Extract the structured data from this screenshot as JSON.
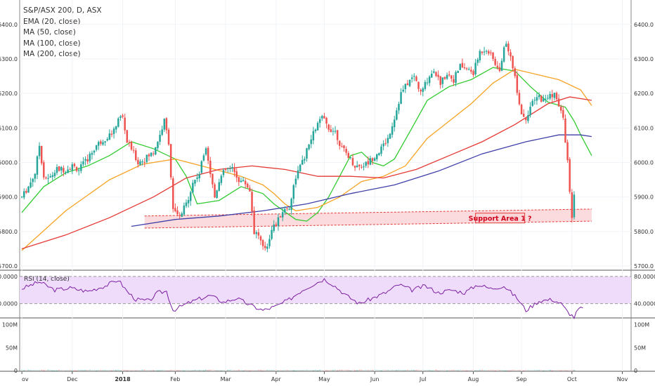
{
  "legend": {
    "symbol": "S&P/ASX 200, D, ASX",
    "ema20": "EMA (20, close)",
    "ma50": "MA (50, close)",
    "ma100": "MA (100, close)",
    "ma200": "MA (200, close)"
  },
  "annotation": {
    "support": "Support Area 1 ?"
  },
  "rsi_label": "RSI (14, close)",
  "colors": {
    "up": "#26a69a",
    "down": "#ef5350",
    "ema20": "#33cc33",
    "ma50": "#f7a325",
    "ma100": "#e53935",
    "ma200": "#3f3fa8",
    "rsi_line": "#7b1fa2",
    "rsi_band": "#efdcfa",
    "support_fill": "#fbd5d8",
    "support_border": "#e53935"
  },
  "chart_data": [
    {
      "type": "candlestick",
      "y_ticks": [
        "6400.0",
        "6300.0",
        "6200.0",
        "6100.0",
        "6000.0",
        "5900.0",
        "5800.0",
        "5700.0"
      ],
      "y_tick_values": [
        6400,
        6300,
        6200,
        6100,
        6000,
        5900,
        5800,
        5700
      ],
      "ylim": [
        5690,
        6430
      ],
      "x_ticks": [
        "ov",
        "Dec",
        "2018",
        "Feb",
        "Mar",
        "Apr",
        "May",
        "Jun",
        "Jul",
        "Aug",
        "Sep",
        "Oct",
        "Nov"
      ],
      "x_tick_days": [
        0,
        23,
        46,
        70,
        93,
        116,
        138,
        161,
        183,
        206,
        228,
        251,
        274
      ],
      "x_range_days": [
        -1,
        278
      ],
      "last_day": 252,
      "series": [
        {
          "name": "EMA (20, close)",
          "points": [
            [
              0,
              5855
            ],
            [
              10,
              5930
            ],
            [
              20,
              5970
            ],
            [
              30,
              5990
            ],
            [
              40,
              6020
            ],
            [
              50,
              6060
            ],
            [
              60,
              6040
            ],
            [
              70,
              6010
            ],
            [
              75,
              5960
            ],
            [
              80,
              5880
            ],
            [
              90,
              5890
            ],
            [
              100,
              5930
            ],
            [
              110,
              5910
            ],
            [
              115,
              5880
            ],
            [
              125,
              5835
            ],
            [
              130,
              5830
            ],
            [
              135,
              5855
            ],
            [
              140,
              5900
            ],
            [
              145,
              5960
            ],
            [
              150,
              6020
            ],
            [
              155,
              6030
            ],
            [
              160,
              6000
            ],
            [
              165,
              5990
            ],
            [
              170,
              6010
            ],
            [
              178,
              6100
            ],
            [
              185,
              6180
            ],
            [
              195,
              6220
            ],
            [
              205,
              6240
            ],
            [
              215,
              6275
            ],
            [
              225,
              6265
            ],
            [
              232,
              6220
            ],
            [
              240,
              6175
            ],
            [
              248,
              6160
            ],
            [
              252,
              6120
            ],
            [
              255,
              6080
            ],
            [
              260,
              6020
            ]
          ]
        },
        {
          "name": "MA (50, close)",
          "points": [
            [
              0,
              5745
            ],
            [
              20,
              5860
            ],
            [
              40,
              5950
            ],
            [
              55,
              5995
            ],
            [
              70,
              6010
            ],
            [
              85,
              5985
            ],
            [
              100,
              5960
            ],
            [
              110,
              5935
            ],
            [
              115,
              5910
            ],
            [
              120,
              5880
            ],
            [
              125,
              5860
            ],
            [
              135,
              5870
            ],
            [
              145,
              5900
            ],
            [
              155,
              5945
            ],
            [
              165,
              5960
            ],
            [
              175,
              5990
            ],
            [
              185,
              6070
            ],
            [
              195,
              6120
            ],
            [
              205,
              6170
            ],
            [
              215,
              6230
            ],
            [
              225,
              6270
            ],
            [
              235,
              6255
            ],
            [
              245,
              6240
            ],
            [
              255,
              6210
            ],
            [
              260,
              6165
            ]
          ]
        },
        {
          "name": "MA (100, close)",
          "points": [
            [
              0,
              5750
            ],
            [
              20,
              5790
            ],
            [
              40,
              5840
            ],
            [
              60,
              5900
            ],
            [
              75,
              5955
            ],
            [
              90,
              5980
            ],
            [
              105,
              5990
            ],
            [
              120,
              5980
            ],
            [
              135,
              5960
            ],
            [
              150,
              5960
            ],
            [
              165,
              5955
            ],
            [
              180,
              5980
            ],
            [
              195,
              6020
            ],
            [
              210,
              6060
            ],
            [
              225,
              6110
            ],
            [
              240,
              6170
            ],
            [
              250,
              6190
            ],
            [
              260,
              6180
            ]
          ]
        },
        {
          "name": "MA (200, close)",
          "points": [
            [
              50,
              5815
            ],
            [
              70,
              5835
            ],
            [
              90,
              5845
            ],
            [
              110,
              5860
            ],
            [
              130,
              5880
            ],
            [
              150,
              5910
            ],
            [
              170,
              5935
            ],
            [
              190,
              5975
            ],
            [
              210,
              6025
            ],
            [
              230,
              6060
            ],
            [
              245,
              6080
            ],
            [
              255,
              6080
            ],
            [
              260,
              6075
            ]
          ]
        }
      ],
      "candle_anchors": [
        [
          0,
          5900
        ],
        [
          3,
          5930
        ],
        [
          6,
          5970
        ],
        [
          8,
          6050
        ],
        [
          10,
          5960
        ],
        [
          12,
          5950
        ],
        [
          16,
          5980
        ],
        [
          20,
          5980
        ],
        [
          23,
          5990
        ],
        [
          26,
          5980
        ],
        [
          30,
          6010
        ],
        [
          34,
          6050
        ],
        [
          38,
          6070
        ],
        [
          42,
          6090
        ],
        [
          44,
          6130
        ],
        [
          46,
          6130
        ],
        [
          48,
          6060
        ],
        [
          50,
          6040
        ],
        [
          53,
          6000
        ],
        [
          56,
          6010
        ],
        [
          60,
          6030
        ],
        [
          63,
          6080
        ],
        [
          65,
          6120
        ],
        [
          67,
          6060
        ],
        [
          69,
          5860
        ],
        [
          72,
          5840
        ],
        [
          75,
          5880
        ],
        [
          78,
          5940
        ],
        [
          81,
          5970
        ],
        [
          84,
          6050
        ],
        [
          86,
          5970
        ],
        [
          88,
          5900
        ],
        [
          90,
          5950
        ],
        [
          93,
          5980
        ],
        [
          96,
          5980
        ],
        [
          99,
          5950
        ],
        [
          102,
          5940
        ],
        [
          104,
          5920
        ],
        [
          106,
          5800
        ],
        [
          108,
          5790
        ],
        [
          110,
          5750
        ],
        [
          112,
          5760
        ],
        [
          114,
          5810
        ],
        [
          116,
          5820
        ],
        [
          119,
          5860
        ],
        [
          122,
          5870
        ],
        [
          125,
          5960
        ],
        [
          128,
          6000
        ],
        [
          131,
          6050
        ],
        [
          134,
          6100
        ],
        [
          137,
          6130
        ],
        [
          140,
          6100
        ],
        [
          143,
          6090
        ],
        [
          146,
          6040
        ],
        [
          149,
          6020
        ],
        [
          152,
          5990
        ],
        [
          155,
          5990
        ],
        [
          158,
          6000
        ],
        [
          161,
          6020
        ],
        [
          164,
          6040
        ],
        [
          167,
          6070
        ],
        [
          170,
          6130
        ],
        [
          173,
          6200
        ],
        [
          176,
          6230
        ],
        [
          179,
          6250
        ],
        [
          182,
          6200
        ],
        [
          185,
          6240
        ],
        [
          188,
          6270
        ],
        [
          191,
          6230
        ],
        [
          194,
          6260
        ],
        [
          197,
          6240
        ],
        [
          200,
          6280
        ],
        [
          203,
          6270
        ],
        [
          206,
          6260
        ],
        [
          209,
          6320
        ],
        [
          212,
          6330
        ],
        [
          215,
          6300
        ],
        [
          218,
          6260
        ],
        [
          220,
          6340
        ],
        [
          222,
          6330
        ],
        [
          224,
          6280
        ],
        [
          226,
          6210
        ],
        [
          228,
          6140
        ],
        [
          230,
          6130
        ],
        [
          232,
          6160
        ],
        [
          234,
          6180
        ],
        [
          236,
          6190
        ],
        [
          238,
          6180
        ],
        [
          240,
          6190
        ],
        [
          243,
          6200
        ],
        [
          245,
          6160
        ],
        [
          247,
          6130
        ],
        [
          249,
          6000
        ],
        [
          251,
          5840
        ],
        [
          252,
          5900
        ],
        [
          253,
          5940
        ],
        [
          254,
          5935
        ],
        [
          255,
          5900
        ],
        [
          256,
          5890
        ]
      ],
      "support_zone": {
        "start_day": 56,
        "end_day": 260,
        "top_start": 5845,
        "top_end": 5865,
        "bottom_start": 5810,
        "bottom_end": 5830
      }
    },
    {
      "type": "line",
      "name": "RSI (14, close)",
      "y_ticks": [
        "80.0000",
        "40.0000"
      ],
      "y_tick_values": [
        80,
        40
      ],
      "ylim": [
        20,
        86
      ],
      "band": [
        40,
        80
      ],
      "points": [
        [
          0,
          62
        ],
        [
          8,
          72
        ],
        [
          15,
          60
        ],
        [
          22,
          63
        ],
        [
          30,
          58
        ],
        [
          38,
          66
        ],
        [
          44,
          75
        ],
        [
          48,
          58
        ],
        [
          52,
          46
        ],
        [
          58,
          44
        ],
        [
          62,
          56
        ],
        [
          66,
          58
        ],
        [
          69,
          30
        ],
        [
          74,
          38
        ],
        [
          80,
          46
        ],
        [
          86,
          52
        ],
        [
          92,
          42
        ],
        [
          98,
          48
        ],
        [
          104,
          38
        ],
        [
          110,
          30
        ],
        [
          116,
          36
        ],
        [
          122,
          46
        ],
        [
          128,
          60
        ],
        [
          134,
          70
        ],
        [
          138,
          76
        ],
        [
          142,
          68
        ],
        [
          148,
          52
        ],
        [
          154,
          40
        ],
        [
          160,
          48
        ],
        [
          166,
          56
        ],
        [
          172,
          68
        ],
        [
          178,
          60
        ],
        [
          184,
          66
        ],
        [
          190,
          56
        ],
        [
          196,
          60
        ],
        [
          202,
          56
        ],
        [
          208,
          68
        ],
        [
          214,
          62
        ],
        [
          220,
          66
        ],
        [
          226,
          48
        ],
        [
          230,
          30
        ],
        [
          236,
          44
        ],
        [
          242,
          46
        ],
        [
          246,
          40
        ],
        [
          249,
          28
        ],
        [
          252,
          20
        ],
        [
          254,
          32
        ],
        [
          256,
          33
        ]
      ]
    },
    {
      "type": "bar",
      "name": "Volume",
      "y_ticks": [
        "100M",
        "50M",
        "0"
      ],
      "y_tick_values": [
        100,
        50,
        0
      ],
      "ylim": [
        0,
        110
      ]
    }
  ]
}
